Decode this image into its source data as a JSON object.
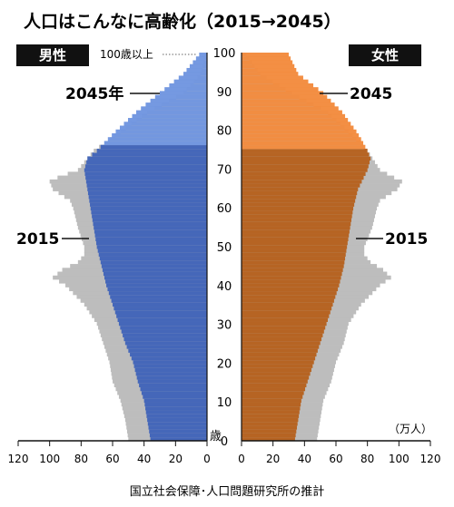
{
  "chart_data": {
    "type": "population-pyramid",
    "title": "人口はこんなに高齢化（2015→2045）",
    "unit_label": "（万人）",
    "age_axis_label": "歳",
    "top_age_label": "100歳以上",
    "source": "国立社会保障･人口問題研究所の推計",
    "left_label": "男性",
    "right_label": "女性",
    "x_ticks": [
      120,
      100,
      80,
      60,
      40,
      20,
      0
    ],
    "age_ticks": [
      0,
      10,
      20,
      30,
      40,
      50,
      60,
      70,
      80,
      90,
      100
    ],
    "xlim": [
      0,
      120
    ],
    "ylim": [
      0,
      100
    ],
    "annotations": {
      "male_2045": "2045年",
      "female_2045": "2045",
      "male_2015": "2015",
      "female_2015": "2015"
    },
    "colors": {
      "male_2045": "#3f63b8",
      "male_2045_light": "#6f95e0",
      "female_2045": "#b5601c",
      "female_2045_light": "#f28a3c",
      "pop_2015": "#bdbdbd"
    },
    "series": [
      {
        "name": "男性2015",
        "points": [
          [
            0,
            50
          ],
          [
            5,
            52
          ],
          [
            10,
            55
          ],
          [
            15,
            60
          ],
          [
            20,
            62
          ],
          [
            25,
            66
          ],
          [
            30,
            70
          ],
          [
            35,
            78
          ],
          [
            40,
            90
          ],
          [
            42,
            98
          ],
          [
            44,
            92
          ],
          [
            46,
            82
          ],
          [
            48,
            78
          ],
          [
            50,
            78
          ],
          [
            55,
            82
          ],
          [
            60,
            85
          ],
          [
            62,
            87
          ],
          [
            65,
            98
          ],
          [
            67,
            100
          ],
          [
            68,
            95
          ],
          [
            70,
            82
          ],
          [
            75,
            72
          ],
          [
            80,
            55
          ],
          [
            85,
            38
          ],
          [
            90,
            15
          ],
          [
            95,
            4
          ],
          [
            100,
            1
          ]
        ]
      },
      {
        "name": "男性2045",
        "points": [
          [
            0,
            36
          ],
          [
            5,
            38
          ],
          [
            10,
            40
          ],
          [
            15,
            44
          ],
          [
            20,
            47
          ],
          [
            25,
            52
          ],
          [
            30,
            56
          ],
          [
            35,
            60
          ],
          [
            40,
            64
          ],
          [
            45,
            67
          ],
          [
            50,
            70
          ],
          [
            55,
            72
          ],
          [
            60,
            74
          ],
          [
            65,
            76
          ],
          [
            70,
            78
          ],
          [
            73,
            76
          ],
          [
            75,
            70
          ],
          [
            78,
            63
          ],
          [
            80,
            58
          ],
          [
            85,
            45
          ],
          [
            90,
            30
          ],
          [
            95,
            15
          ],
          [
            100,
            5
          ]
        ]
      },
      {
        "name": "女性2015",
        "points": [
          [
            0,
            48
          ],
          [
            5,
            50
          ],
          [
            10,
            52
          ],
          [
            15,
            57
          ],
          [
            20,
            60
          ],
          [
            25,
            65
          ],
          [
            30,
            68
          ],
          [
            35,
            76
          ],
          [
            40,
            88
          ],
          [
            42,
            95
          ],
          [
            44,
            90
          ],
          [
            46,
            82
          ],
          [
            48,
            78
          ],
          [
            50,
            78
          ],
          [
            55,
            83
          ],
          [
            60,
            86
          ],
          [
            62,
            88
          ],
          [
            65,
            99
          ],
          [
            67,
            102
          ],
          [
            68,
            97
          ],
          [
            70,
            88
          ],
          [
            75,
            80
          ],
          [
            80,
            68
          ],
          [
            85,
            55
          ],
          [
            90,
            32
          ],
          [
            95,
            12
          ],
          [
            100,
            3
          ]
        ]
      },
      {
        "name": "女性2045",
        "points": [
          [
            0,
            34
          ],
          [
            5,
            36
          ],
          [
            10,
            38
          ],
          [
            15,
            42
          ],
          [
            20,
            46
          ],
          [
            25,
            50
          ],
          [
            30,
            54
          ],
          [
            35,
            58
          ],
          [
            40,
            62
          ],
          [
            45,
            65
          ],
          [
            50,
            67
          ],
          [
            55,
            69
          ],
          [
            60,
            71
          ],
          [
            65,
            74
          ],
          [
            70,
            80
          ],
          [
            73,
            82
          ],
          [
            75,
            80
          ],
          [
            78,
            76
          ],
          [
            80,
            73
          ],
          [
            85,
            64
          ],
          [
            90,
            52
          ],
          [
            95,
            36
          ],
          [
            100,
            30
          ]
        ]
      }
    ]
  }
}
